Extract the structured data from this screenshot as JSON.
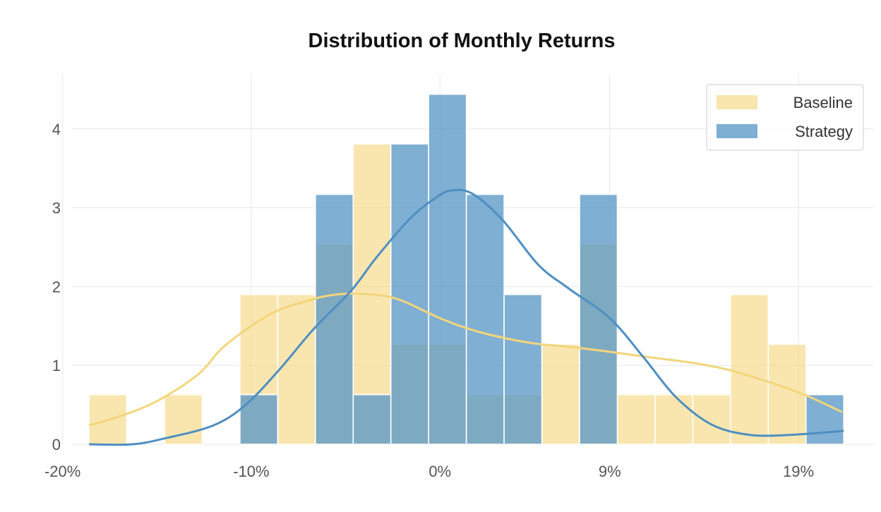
{
  "chart_data": {
    "type": "histogram",
    "title": "Distribution of Monthly Returns",
    "xlabel": "",
    "ylabel": "",
    "x_range": [
      -19.5,
      23.0
    ],
    "ylim": [
      0,
      4.5
    ],
    "bin_width": 2.0,
    "bin_edges": [
      -18.6,
      -16.6,
      -14.6,
      -12.6,
      -10.6,
      -8.6,
      -6.6,
      -4.6,
      -2.6,
      -0.6,
      1.4,
      3.4,
      5.4,
      7.4,
      9.4,
      11.4,
      13.4,
      15.4,
      17.4,
      19.4,
      21.4
    ],
    "x_ticks": [
      {
        "value": -20,
        "label": "-20%"
      },
      {
        "value": -10,
        "label": "-10%"
      },
      {
        "value": 0,
        "label": "0%"
      },
      {
        "value": 9,
        "label": "9%"
      },
      {
        "value": 19,
        "label": "19%"
      }
    ],
    "y_ticks": [
      {
        "value": 0,
        "label": "0"
      },
      {
        "value": 1,
        "label": "1"
      },
      {
        "value": 2,
        "label": "2"
      },
      {
        "value": 3,
        "label": "3"
      },
      {
        "value": 4,
        "label": "4"
      }
    ],
    "grid": true,
    "legend_position": "top-right",
    "series": [
      {
        "name": "Baseline",
        "color": "#f5d77e",
        "counts": [
          0.63,
          0,
          0.63,
          0,
          1.9,
          1.9,
          2.54,
          3.81,
          1.27,
          1.27,
          0.63,
          0.63,
          1.27,
          2.54,
          0.63,
          0.63,
          0.63,
          1.9,
          1.27,
          0
        ],
        "kde": [
          [
            -18.6,
            0.24
          ],
          [
            -16.8,
            0.37
          ],
          [
            -14.9,
            0.56
          ],
          [
            -12.8,
            0.89
          ],
          [
            -11.4,
            1.25
          ],
          [
            -9.0,
            1.65
          ],
          [
            -7.0,
            1.82
          ],
          [
            -5.5,
            1.9
          ],
          [
            -3.6,
            1.9
          ],
          [
            -2.1,
            1.83
          ],
          [
            0.0,
            1.6
          ],
          [
            2.0,
            1.43
          ],
          [
            4.7,
            1.29
          ],
          [
            6.7,
            1.24
          ],
          [
            8.8,
            1.18
          ],
          [
            10.9,
            1.11
          ],
          [
            13.2,
            1.04
          ],
          [
            15.2,
            0.95
          ],
          [
            17.3,
            0.8
          ],
          [
            19.4,
            0.62
          ],
          [
            21.3,
            0.41
          ]
        ]
      },
      {
        "name": "Strategy",
        "color": "#5b98c7",
        "counts": [
          0,
          0,
          0,
          0,
          0.63,
          0,
          3.17,
          0.63,
          3.81,
          4.44,
          3.17,
          1.9,
          0,
          3.17,
          0,
          0,
          0,
          0,
          0,
          0.63
        ],
        "kde": [
          [
            -18.6,
            0.0
          ],
          [
            -16.3,
            0.0
          ],
          [
            -14.5,
            0.08
          ],
          [
            -12.0,
            0.24
          ],
          [
            -10.3,
            0.5
          ],
          [
            -8.5,
            0.95
          ],
          [
            -6.7,
            1.46
          ],
          [
            -4.7,
            1.95
          ],
          [
            -3.4,
            2.36
          ],
          [
            -1.6,
            2.86
          ],
          [
            -0.2,
            3.13
          ],
          [
            0.6,
            3.22
          ],
          [
            1.7,
            3.18
          ],
          [
            3.3,
            2.85
          ],
          [
            5.2,
            2.28
          ],
          [
            6.8,
            1.98
          ],
          [
            9.0,
            1.6
          ],
          [
            10.8,
            1.1
          ],
          [
            12.5,
            0.6
          ],
          [
            14.4,
            0.25
          ],
          [
            16.4,
            0.12
          ],
          [
            18.6,
            0.12
          ],
          [
            21.4,
            0.17
          ]
        ]
      }
    ]
  }
}
